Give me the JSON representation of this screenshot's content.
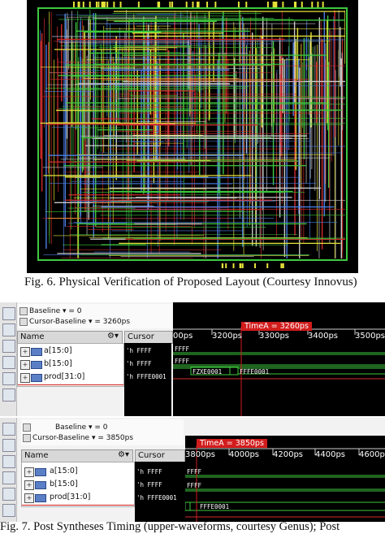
{
  "figure6": {
    "caption": "Fig. 6. Physical Verification of Proposed Layout (Courtesy Innovus)"
  },
  "figure7": {
    "caption_partial": "Fig. 7. Post Syntheses Timing (upper-waveforms, courtesy Genus); Post",
    "upper": {
      "baseline_label": "Baseline ▾ = 0",
      "cursor_baseline_label": "Cursor-Baseline ▾ = 3260ps",
      "name_header": "Name",
      "cursor_header": "Cursor",
      "signals": [
        {
          "name": "a[15:0]",
          "cursor": "'h FFFF"
        },
        {
          "name": "b[15:0]",
          "cursor": "'h FFFF"
        },
        {
          "name": "prod[31:0]",
          "cursor": "'h FFFE0001"
        }
      ],
      "ticks": [
        "00ps",
        "3200ps",
        "3300ps",
        "3400ps",
        "3500ps"
      ],
      "marker": "TimeA = 3260ps",
      "waves": {
        "a": "FFFF",
        "b": "FFFF",
        "prod_1": "FZXE0001",
        "prod_2": "FFFE0001"
      }
    },
    "lower": {
      "baseline_label": "Baseline ▾ = 0",
      "cursor_baseline_label": "Cursor-Baseline ▾ = 3850ps",
      "name_header": "Name",
      "cursor_header": "Cursor",
      "signals": [
        {
          "name": "a[15:0]",
          "cursor": "'h FFFF"
        },
        {
          "name": "b[15:0]",
          "cursor": "'h FFFF"
        },
        {
          "name": "prod[31:0]",
          "cursor": "'h FFFE0001"
        }
      ],
      "ticks": [
        "3800ps",
        "4000ps",
        "4200ps",
        "4400ps",
        "4600ps"
      ],
      "marker": "TimeA = 3850ps",
      "waves": {
        "a": "FFFF",
        "b": "FFFF",
        "prod": "FFFE0001"
      }
    }
  },
  "colors": {
    "trace_green": "#3ec93e",
    "trace_yellow": "#e6e23a",
    "trace_red": "#d22b2b",
    "marker_red": "#d21c1c"
  }
}
